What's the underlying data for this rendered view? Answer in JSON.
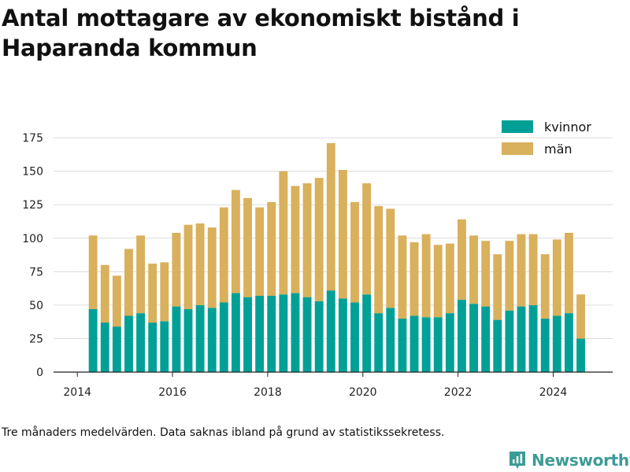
{
  "title": "Antal mottagare av ekonomiskt bistånd i Haparanda kommun",
  "footnote": "Tre månaders medelvärden. Data saknas ibland på grund av statistikssekretess.",
  "brand": {
    "name": "Newsworthy",
    "icon": "newsworthy-logo-icon",
    "color": "#3d9b96"
  },
  "chart_data": {
    "type": "bar",
    "stacked": true,
    "x_axis": {
      "min": 2013.5,
      "max": 2025.25,
      "ticks": [
        2014,
        2016,
        2018,
        2020,
        2022,
        2024
      ]
    },
    "y_axis": {
      "min": 0,
      "max": 178,
      "ticks": [
        0,
        25,
        50,
        75,
        100,
        125,
        150,
        175
      ]
    },
    "grid": true,
    "legend_placement": "top-right",
    "bar_width": 0.18,
    "x": [
      2014.33,
      2014.58,
      2014.83,
      2015.08,
      2015.33,
      2015.58,
      2015.83,
      2016.08,
      2016.33,
      2016.58,
      2016.83,
      2017.08,
      2017.33,
      2017.58,
      2017.83,
      2018.08,
      2018.33,
      2018.58,
      2018.83,
      2019.08,
      2019.33,
      2019.58,
      2019.83,
      2020.08,
      2020.33,
      2020.58,
      2020.83,
      2021.08,
      2021.33,
      2021.58,
      2021.83,
      2022.08,
      2022.33,
      2022.58,
      2022.83,
      2023.08,
      2023.33,
      2023.58,
      2023.83,
      2024.08,
      2024.33,
      2024.58
    ],
    "series": [
      {
        "name": "kvinnor",
        "color": "#00a096",
        "values": [
          47,
          37,
          34,
          42,
          44,
          37,
          38,
          49,
          47,
          50,
          48,
          52,
          59,
          56,
          57,
          57,
          58,
          59,
          56,
          53,
          61,
          55,
          52,
          58,
          44,
          48,
          40,
          42,
          41,
          41,
          44,
          54,
          51,
          49,
          39,
          46,
          49,
          50,
          40,
          42,
          44,
          25
        ]
      },
      {
        "name": "män",
        "color": "#d9b05c",
        "values": [
          55,
          43,
          38,
          50,
          58,
          44,
          44,
          55,
          63,
          61,
          60,
          71,
          77,
          74,
          66,
          70,
          92,
          80,
          85,
          92,
          110,
          96,
          75,
          83,
          80,
          74,
          62,
          55,
          62,
          54,
          52,
          60,
          51,
          49,
          49,
          52,
          54,
          53,
          48,
          57,
          60,
          33
        ]
      }
    ]
  }
}
